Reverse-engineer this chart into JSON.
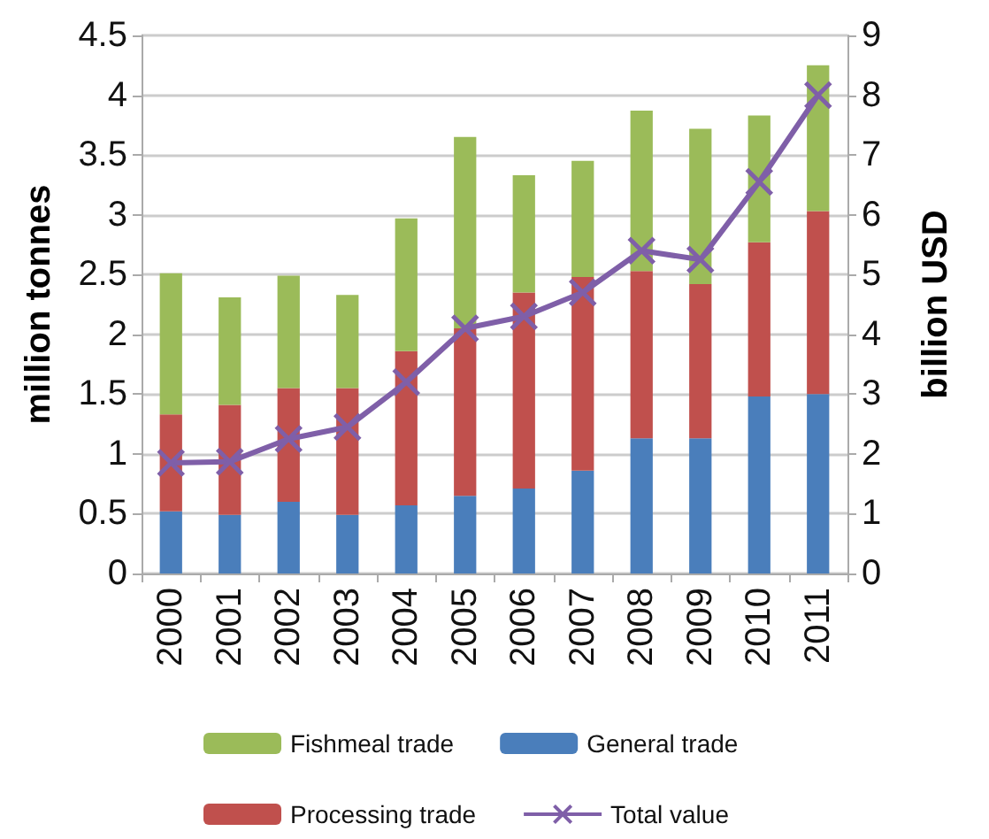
{
  "chart_data": {
    "type": "bar",
    "stacked": true,
    "ylabel": "million tonnes",
    "y2label": "billion USD",
    "categories": [
      "2000",
      "2001",
      "2002",
      "2003",
      "2004",
      "2005",
      "2006",
      "2007",
      "2008",
      "2009",
      "2010",
      "2011"
    ],
    "series": [
      {
        "name": "General trade",
        "color": "#4a7ebb",
        "values": [
          0.52,
          0.49,
          0.6,
          0.49,
          0.57,
          0.65,
          0.71,
          0.86,
          1.13,
          1.13,
          1.48,
          1.5
        ]
      },
      {
        "name": "Processing trade",
        "color": "#c0504d",
        "values": [
          0.81,
          0.92,
          0.95,
          1.06,
          1.29,
          1.4,
          1.64,
          1.62,
          1.4,
          1.29,
          1.29,
          1.53
        ]
      },
      {
        "name": "Fishmeal trade",
        "color": "#9bbb59",
        "values": [
          1.18,
          0.9,
          0.94,
          0.78,
          1.11,
          1.6,
          0.98,
          0.97,
          1.34,
          1.3,
          1.06,
          1.22
        ]
      },
      {
        "name": "Total value",
        "type": "line",
        "axis": "y2",
        "color": "#7f5fa8",
        "marker": "cross",
        "values": [
          1.85,
          1.87,
          2.25,
          2.45,
          3.2,
          4.1,
          4.3,
          4.7,
          5.4,
          5.25,
          6.55,
          8.0
        ]
      }
    ],
    "ylim": [
      0,
      4.5
    ],
    "yticks": [
      0,
      0.5,
      1,
      1.5,
      2,
      2.5,
      3,
      3.5,
      4,
      4.5
    ],
    "y2lim": [
      0,
      9
    ],
    "y2ticks": [
      0,
      1,
      2,
      3,
      4,
      5,
      6,
      7,
      8,
      9
    ],
    "grid": "y",
    "legend": "bottom"
  }
}
